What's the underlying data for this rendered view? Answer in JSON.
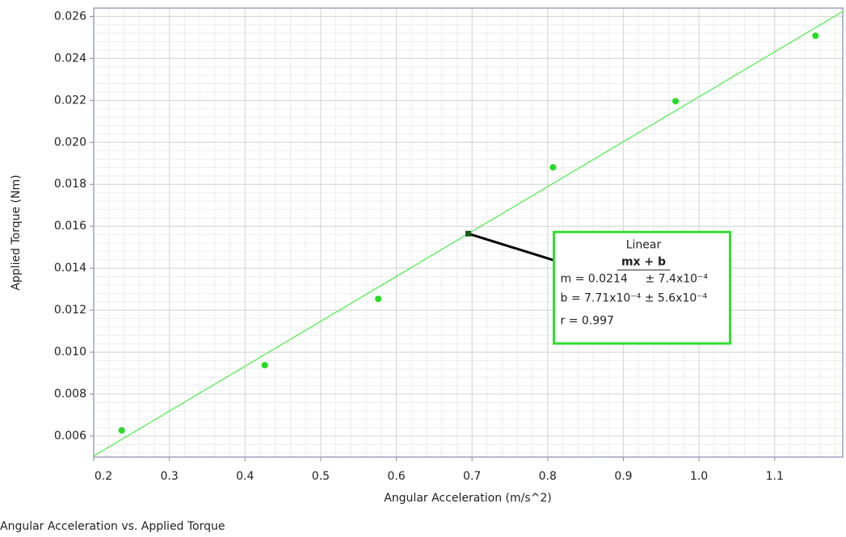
{
  "chart_data": {
    "type": "scatter",
    "title": "Angular Acceleration vs. Applied Torque",
    "x_label": "Angular Acceleration (m/s^2)",
    "y_label": "Applied Torque (Nm)",
    "xlim": [
      0.2,
      1.19
    ],
    "ylim": [
      0.005,
      0.0264
    ],
    "xticks": [
      0.2,
      0.3,
      0.4,
      0.5,
      0.6,
      0.7,
      0.8,
      0.9,
      {
        "value": 1.0,
        "label": "1.0"
      },
      1.1
    ],
    "yticks": [
      {
        "value": 0.006,
        "label": "0.006"
      },
      {
        "value": 0.008,
        "label": "0.008"
      },
      {
        "value": 0.01,
        "label": "0.010"
      },
      {
        "value": 0.012,
        "label": "0.012"
      },
      {
        "value": 0.014,
        "label": "0.014"
      },
      {
        "value": 0.016,
        "label": "0.016"
      },
      {
        "value": 0.018,
        "label": "0.018"
      },
      {
        "value": 0.02,
        "label": "0.020"
      },
      {
        "value": 0.022,
        "label": "0.022"
      },
      {
        "value": 0.024,
        "label": "0.024"
      },
      {
        "value": 0.026,
        "label": "0.026"
      }
    ],
    "grid": true,
    "minor_grid": true,
    "series": [
      {
        "color": "#22dd22",
        "x": [
          0.237,
          0.426,
          0.576,
          0.807,
          0.969,
          1.154
        ],
        "values": [
          0.00627,
          0.00938,
          0.01254,
          0.01881,
          0.02196,
          0.02508
        ]
      }
    ],
    "fit": {
      "m": 0.0214,
      "b": 0.000771,
      "color": "#55ee55"
    },
    "annotation": {
      "x": 0.695,
      "y": 0.01565,
      "title": "Linear",
      "formula": "mx + b",
      "m_text": "m = 0.0214",
      "m_err": "± 7.4x10⁻⁴",
      "b_text": "b  = 7.71x10⁻⁴ ± 5.6x10⁻⁴",
      "r_text": "r = 0.997"
    }
  }
}
